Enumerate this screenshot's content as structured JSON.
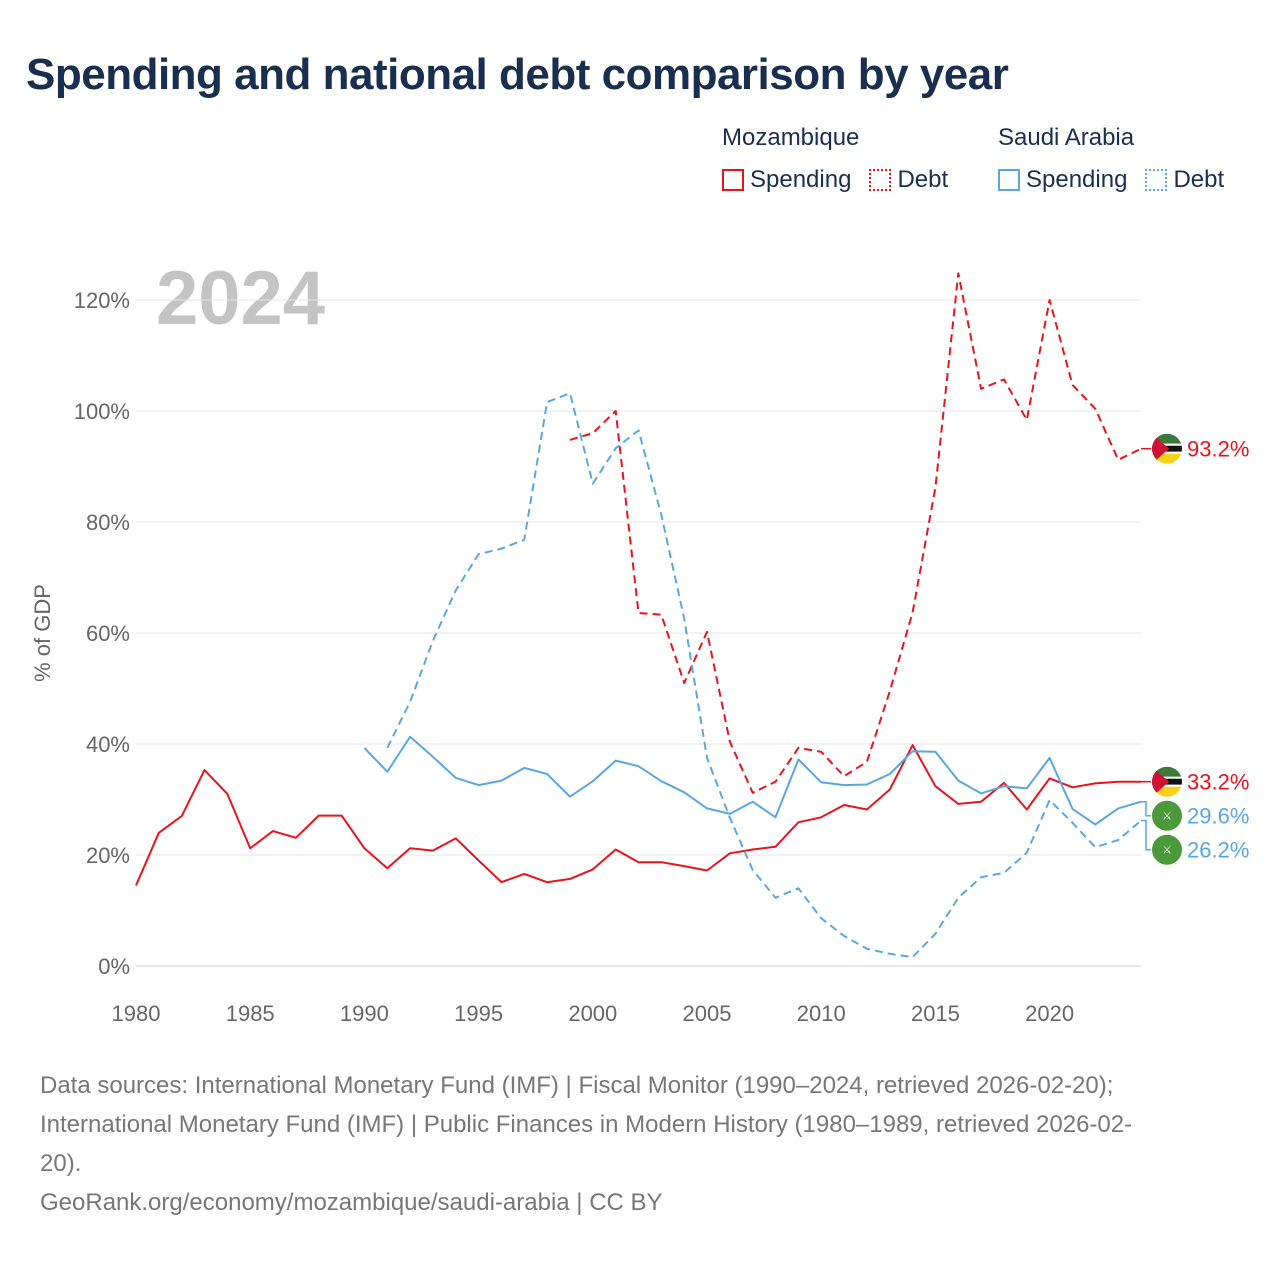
{
  "title": "Spending and national debt comparison by year",
  "legend": {
    "groups": [
      {
        "country": "Mozambique",
        "spending": "Spending",
        "debt": "Debt",
        "color": "#e8141b"
      },
      {
        "country": "Saudi Arabia",
        "spending": "Spending",
        "debt": "Debt",
        "color": "#5aa6e2"
      }
    ]
  },
  "chart_data": {
    "type": "line",
    "title": "Spending and national debt comparison by year",
    "year_label": "2024",
    "ylabel": "% of GDP",
    "xlabel": "",
    "xlim": [
      1980,
      2024
    ],
    "ylim": [
      0,
      120
    ],
    "x_ticks": [
      1980,
      1985,
      1990,
      1995,
      2000,
      2005,
      2010,
      2015,
      2020
    ],
    "y_ticks": [
      0,
      20,
      40,
      60,
      80,
      100,
      120
    ],
    "y_tick_labels": [
      "0%",
      "20%",
      "40%",
      "60%",
      "80%",
      "100%",
      "120%"
    ],
    "grid": true,
    "legend_position": "top-right",
    "series": [
      {
        "name": "Mozambique Spending",
        "country": "Mozambique",
        "kind": "spending",
        "color": "#e8141b",
        "dashed": false,
        "end_label": "33.2%",
        "flag": "mozambique-flag-icon",
        "x": [
          1980,
          1981,
          1982,
          1983,
          1984,
          1985,
          1986,
          1987,
          1988,
          1989,
          1990,
          1991,
          1992,
          1993,
          1994,
          1995,
          1996,
          1997,
          1998,
          1999,
          2000,
          2001,
          2002,
          2003,
          2004,
          2005,
          2006,
          2007,
          2008,
          2009,
          2010,
          2011,
          2012,
          2013,
          2014,
          2015,
          2016,
          2017,
          2018,
          2019,
          2020,
          2021,
          2022,
          2023,
          2024
        ],
        "values": [
          14.5,
          24,
          27,
          35.3,
          31,
          21.2,
          24.3,
          23.1,
          27.1,
          27.1,
          21.2,
          17.6,
          21.2,
          20.8,
          23,
          19,
          15.1,
          16.6,
          15.1,
          15.7,
          17.4,
          21,
          18.7,
          18.7,
          18,
          17.2,
          20.3,
          21,
          21.5,
          25.9,
          26.8,
          29,
          28.2,
          31.8,
          39.8,
          32.4,
          29.2,
          29.6,
          33,
          28.2,
          33.8,
          32.2,
          32.9,
          33.2,
          33.2
        ]
      },
      {
        "name": "Mozambique Debt",
        "country": "Mozambique",
        "kind": "debt",
        "color": "#e8141b",
        "dashed": true,
        "end_label": "93.2%",
        "flag": "mozambique-flag-icon",
        "x": [
          1999,
          2000,
          2001,
          2002,
          2003,
          2004,
          2005,
          2006,
          2007,
          2008,
          2009,
          2010,
          2011,
          2012,
          2013,
          2014,
          2015,
          2016,
          2017,
          2018,
          2019,
          2020,
          2021,
          2022,
          2023,
          2024
        ],
        "values": [
          94.8,
          96,
          100,
          63.6,
          63.3,
          51,
          60.2,
          40.4,
          31.2,
          33.2,
          39.3,
          38.6,
          34.2,
          36.8,
          49.5,
          63.7,
          86.2,
          124.8,
          104,
          105.7,
          98.4,
          120,
          104.7,
          100.4,
          91.2,
          93.2
        ]
      },
      {
        "name": "Saudi Arabia Spending",
        "country": "Saudi Arabia",
        "kind": "spending",
        "color": "#5aa6e2",
        "dashed": false,
        "end_label": "29.6%",
        "flag": "saudi-flag-icon",
        "x": [
          1990,
          1991,
          1992,
          1993,
          1994,
          1995,
          1996,
          1997,
          1998,
          1999,
          2000,
          2001,
          2002,
          2003,
          2004,
          2005,
          2006,
          2007,
          2008,
          2009,
          2010,
          2011,
          2012,
          2013,
          2014,
          2015,
          2016,
          2017,
          2018,
          2019,
          2020,
          2021,
          2022,
          2023,
          2024
        ],
        "values": [
          39.3,
          35,
          41.3,
          37.7,
          33.9,
          32.6,
          33.4,
          35.7,
          34.6,
          30.5,
          33.3,
          37,
          36,
          33.3,
          31.3,
          28.4,
          27.4,
          29.6,
          26.8,
          37.2,
          33.1,
          32.6,
          32.7,
          34.6,
          38.7,
          38.6,
          33.4,
          31.1,
          32.4,
          32,
          37.5,
          28.3,
          25.5,
          28.4,
          29.6
        ]
      },
      {
        "name": "Saudi Arabia Debt",
        "country": "Saudi Arabia",
        "kind": "debt",
        "color": "#5aa6e2",
        "dashed": true,
        "end_label": "26.2%",
        "flag": "saudi-flag-icon",
        "x": [
          1991,
          1992,
          1993,
          1994,
          1995,
          1996,
          1997,
          1998,
          1999,
          2000,
          2001,
          2002,
          2003,
          2004,
          2005,
          2006,
          2007,
          2008,
          2009,
          2010,
          2011,
          2012,
          2013,
          2014,
          2015,
          2016,
          2017,
          2018,
          2019,
          2020,
          2021,
          2022,
          2023,
          2024
        ],
        "values": [
          39.3,
          47.6,
          58.6,
          67.7,
          74.2,
          75.2,
          76.8,
          101.6,
          103.2,
          86.9,
          93.3,
          96.5,
          81.3,
          62.6,
          37.5,
          26.7,
          17.3,
          12.3,
          14,
          8.6,
          5.4,
          3.1,
          2.2,
          1.6,
          5.8,
          12.3,
          16,
          16.8,
          20.4,
          29.9,
          25.8,
          21.4,
          22.7,
          26.2
        ]
      }
    ]
  },
  "footer": {
    "sources_line1": "Data sources: International Monetary Fund (IMF) | Fiscal Monitor (1990–2024, retrieved 2026-02-20);",
    "sources_line2": "International Monetary Fund (IMF) | Public Finances in Modern History (1980–1989, retrieved 2026-02-",
    "sources_line3": "20).",
    "credit": "GeoRank.org/economy/mozambique/saudi-arabia | CC BY"
  }
}
